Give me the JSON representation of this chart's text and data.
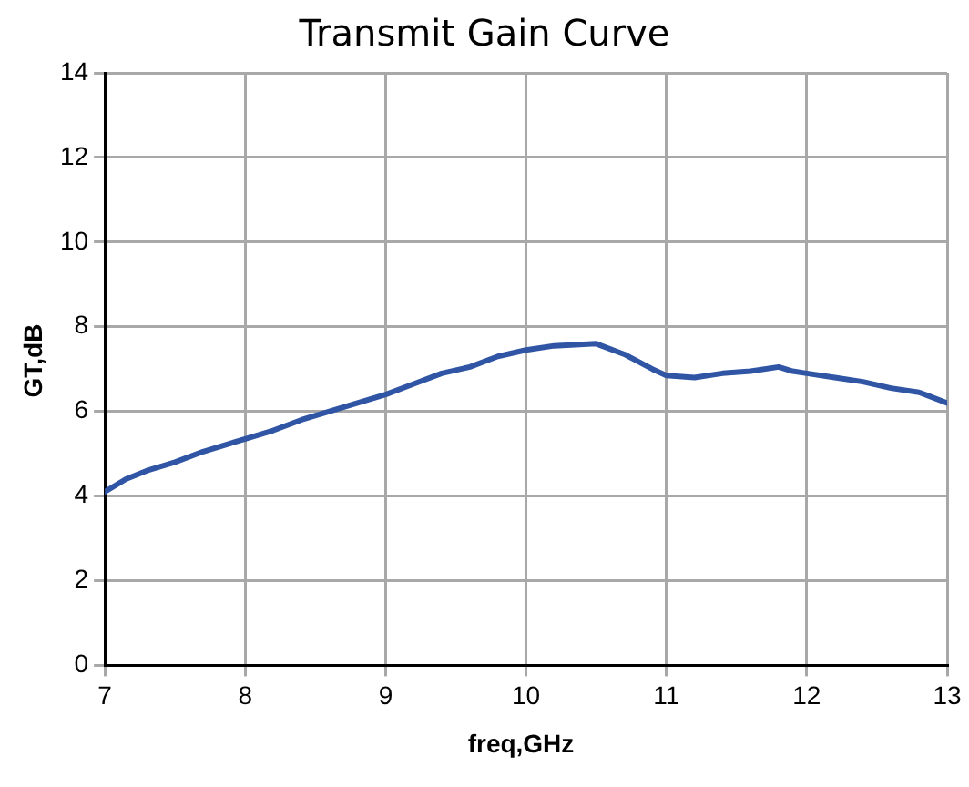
{
  "chart_data": {
    "type": "line",
    "title": "Transmit Gain Curve",
    "xlabel": "freq,GHz",
    "ylabel": "GT,dB",
    "x": [
      7,
      7.15,
      7.3,
      7.5,
      7.7,
      8,
      8.2,
      8.4,
      8.6,
      8.8,
      9,
      9.2,
      9.4,
      9.6,
      9.8,
      10,
      10.2,
      10.5,
      10.7,
      10.9,
      11,
      11.2,
      11.4,
      11.6,
      11.8,
      11.9,
      12,
      12.2,
      12.4,
      12.6,
      12.8,
      13
    ],
    "series": [
      {
        "color": "#2f55a4",
        "values": [
          4.1,
          4.4,
          4.6,
          4.8,
          5.05,
          5.35,
          5.55,
          5.8,
          6.0,
          6.2,
          6.4,
          6.65,
          6.9,
          7.05,
          7.3,
          7.45,
          7.55,
          7.6,
          7.35,
          7.0,
          6.85,
          6.8,
          6.9,
          6.95,
          7.05,
          6.95,
          6.9,
          6.8,
          6.7,
          6.55,
          6.45,
          6.2
        ]
      }
    ],
    "xlim": [
      7,
      13
    ],
    "xticks": [
      7,
      8,
      9,
      10,
      11,
      12,
      13
    ],
    "ylim": [
      0,
      14
    ],
    "yticks": [
      0,
      2,
      4,
      6,
      8,
      10,
      12,
      14
    ],
    "grid": true,
    "legend": false,
    "marker": "none",
    "line_style": "solid"
  }
}
